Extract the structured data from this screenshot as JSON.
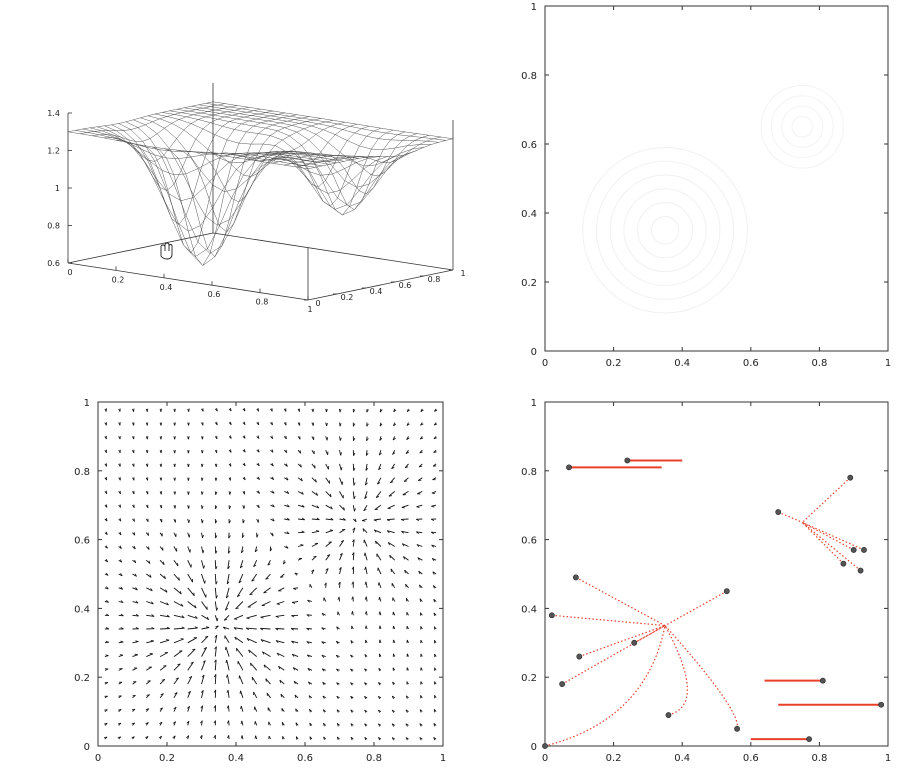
{
  "chart_data": [
    {
      "type": "surface",
      "x_ticks": [
        "0",
        "0.2",
        "0.4",
        "0.6",
        "0.8",
        "1"
      ],
      "y_ticks": [
        "0",
        "0.2",
        "0.4",
        "0.6",
        "0.8",
        "1"
      ],
      "z_ticks": [
        "0.6",
        "0.8",
        "1",
        "1.2",
        "1.4"
      ],
      "xlim": [
        0,
        1
      ],
      "ylim": [
        0,
        1
      ],
      "zlim": [
        0.6,
        1.4
      ],
      "grid": "wireframe 20x20",
      "cursor": "hand-cursor-icon"
    },
    {
      "type": "line",
      "x_ticks": [
        "0",
        "0.2",
        "0.4",
        "0.6",
        "0.8",
        "1"
      ],
      "y_ticks": [
        "0",
        "0.2",
        "0.4",
        "0.6",
        "0.8",
        "1"
      ],
      "xlim": [
        0,
        1
      ],
      "ylim": [
        0,
        1
      ],
      "note_visible": "faint contour lines only"
    },
    {
      "type": "quiver",
      "x_ticks": [
        "0",
        "0.2",
        "0.4",
        "0.6",
        "0.8",
        "1"
      ],
      "y_ticks": [
        "0",
        "0.2",
        "0.4",
        "0.6",
        "0.8",
        "1"
      ],
      "xlim": [
        0,
        1
      ],
      "ylim": [
        0,
        1
      ],
      "grid": "25x25 arrows",
      "sinks": [
        [
          0.35,
          0.35
        ],
        [
          0.75,
          0.65
        ]
      ]
    },
    {
      "type": "scatter",
      "x_ticks": [
        "0",
        "0.2",
        "0.4",
        "0.6",
        "0.8",
        "1"
      ],
      "y_ticks": [
        "0",
        "0.2",
        "0.4",
        "0.6",
        "0.8",
        "1"
      ],
      "xlim": [
        0,
        1
      ],
      "ylim": [
        0,
        1
      ],
      "line_color": "#e8402a",
      "marker_color": "#555555",
      "sinks": [
        [
          0.35,
          0.35
        ],
        [
          0.75,
          0.65
        ]
      ],
      "start_points": [
        [
          0.0,
          0.0
        ],
        [
          0.07,
          0.81
        ],
        [
          0.24,
          0.83
        ],
        [
          0.05,
          0.18
        ],
        [
          0.1,
          0.26
        ],
        [
          0.02,
          0.38
        ],
        [
          0.09,
          0.49
        ],
        [
          0.26,
          0.3
        ],
        [
          0.53,
          0.45
        ],
        [
          0.36,
          0.09
        ],
        [
          0.56,
          0.05
        ],
        [
          0.77,
          0.02
        ],
        [
          0.81,
          0.19
        ],
        [
          0.98,
          0.12
        ],
        [
          0.68,
          0.68
        ],
        [
          0.89,
          0.78
        ],
        [
          0.9,
          0.57
        ],
        [
          0.93,
          0.57
        ],
        [
          0.87,
          0.53
        ],
        [
          0.92,
          0.51
        ]
      ],
      "horizontal_tracks": [
        {
          "start": [
            0.07,
            0.81
          ],
          "end": [
            0.34,
            0.81
          ]
        },
        {
          "start": [
            0.24,
            0.83
          ],
          "end": [
            0.4,
            0.83
          ]
        },
        {
          "start": [
            0.98,
            0.12
          ],
          "end": [
            0.68,
            0.12
          ]
        },
        {
          "start": [
            0.81,
            0.19
          ],
          "end": [
            0.64,
            0.19
          ]
        },
        {
          "start": [
            0.77,
            0.02
          ],
          "end": [
            0.6,
            0.02
          ]
        }
      ]
    }
  ]
}
